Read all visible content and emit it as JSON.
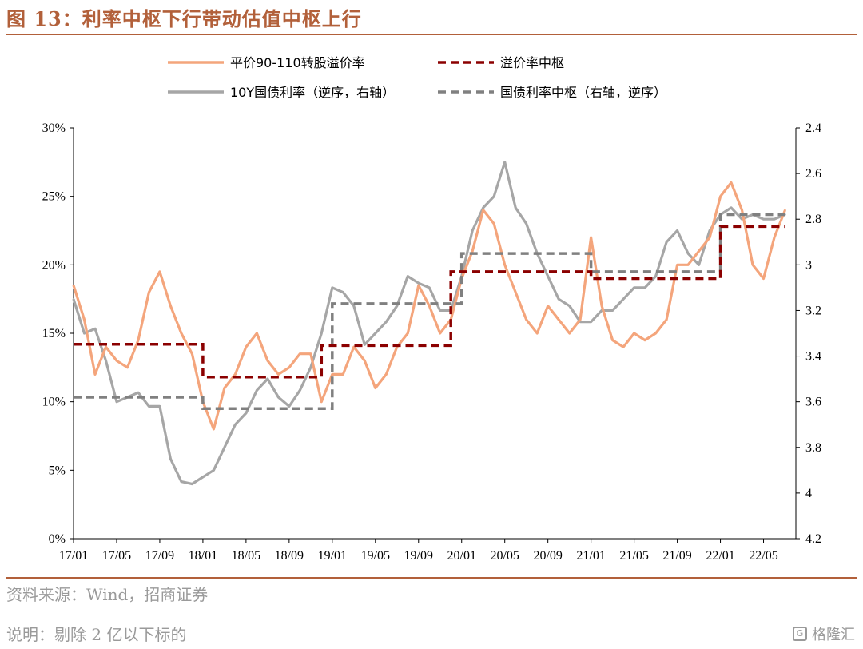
{
  "header": {
    "title": "图 13：利率中枢下行带动估值中枢上行"
  },
  "footer": {
    "source": "资料来源：Wind，招商证券",
    "note": "说明：剔除 2 亿以下标的",
    "watermark": "格隆汇"
  },
  "colors": {
    "premium": "#f4a57c",
    "premium_center": "#8b0000",
    "yield": "#a6a6a6",
    "yield_center": "#808080",
    "accent": "#b2603a"
  },
  "chart_data": {
    "type": "line",
    "x_tick_labels": [
      "17/01",
      "17/05",
      "17/09",
      "18/01",
      "18/05",
      "18/09",
      "19/01",
      "19/05",
      "19/09",
      "20/01",
      "20/05",
      "20/09",
      "21/01",
      "21/05",
      "21/09",
      "22/01",
      "22/05"
    ],
    "y_left": {
      "ticks": [
        "0%",
        "5%",
        "10%",
        "15%",
        "20%",
        "25%",
        "30%"
      ],
      "ylim": [
        0,
        30
      ],
      "unit": "%"
    },
    "y_right": {
      "ticks": [
        "2.4",
        "2.6",
        "2.8",
        "3",
        "3.2",
        "3.4",
        "3.6",
        "3.8",
        "4",
        "4.2"
      ],
      "ylim": [
        2.4,
        4.2
      ],
      "inverted": true
    },
    "series": [
      {
        "name": "平价90-110转股溢价率",
        "axis": "left",
        "style": "solid",
        "x": [
          "2017-01",
          "2017-02",
          "2017-03",
          "2017-04",
          "2017-05",
          "2017-06",
          "2017-07",
          "2017-08",
          "2017-09",
          "2017-10",
          "2017-11",
          "2017-12",
          "2018-01",
          "2018-02",
          "2018-03",
          "2018-04",
          "2018-05",
          "2018-06",
          "2018-07",
          "2018-08",
          "2018-09",
          "2018-10",
          "2018-11",
          "2018-12",
          "2019-01",
          "2019-02",
          "2019-03",
          "2019-04",
          "2019-05",
          "2019-06",
          "2019-07",
          "2019-08",
          "2019-09",
          "2019-10",
          "2019-11",
          "2019-12",
          "2020-01",
          "2020-02",
          "2020-03",
          "2020-04",
          "2020-05",
          "2020-06",
          "2020-07",
          "2020-08",
          "2020-09",
          "2020-10",
          "2020-11",
          "2020-12",
          "2021-01",
          "2021-02",
          "2021-03",
          "2021-04",
          "2021-05",
          "2021-06",
          "2021-07",
          "2021-08",
          "2021-09",
          "2021-10",
          "2021-11",
          "2021-12",
          "2022-01",
          "2022-02",
          "2022-03",
          "2022-04",
          "2022-05",
          "2022-06",
          "2022-07"
        ],
        "values": [
          18.5,
          16,
          12,
          14,
          13,
          12.5,
          14.5,
          18,
          19.5,
          17,
          15,
          13.5,
          10,
          8,
          11,
          12,
          14,
          15,
          13,
          12,
          12.5,
          13.5,
          13.5,
          10,
          12,
          12,
          14,
          13,
          11,
          12,
          14,
          15,
          18.5,
          17,
          15,
          16,
          19,
          21,
          24,
          23,
          20,
          18,
          16,
          15,
          17,
          16,
          15,
          16,
          22,
          17,
          14.5,
          14,
          15,
          14.5,
          15,
          16,
          20,
          20,
          21,
          22,
          25,
          26,
          24,
          20,
          19,
          22,
          24
        ],
        "color": "#f4a57c"
      },
      {
        "name": "溢价率中枢",
        "axis": "left",
        "style": "dashed",
        "steps": [
          {
            "x_start": "2017-01",
            "x_end": "2018-01",
            "value": 14.2
          },
          {
            "x_start": "2018-01",
            "x_end": "2018-12",
            "value": 11.8
          },
          {
            "x_start": "2018-12",
            "x_end": "2019-12",
            "value": 14.1
          },
          {
            "x_start": "2019-12",
            "x_end": "2021-01",
            "value": 19.5
          },
          {
            "x_start": "2021-01",
            "x_end": "2022-01",
            "value": 19.0
          },
          {
            "x_start": "2022-01",
            "x_end": "2022-07",
            "value": 22.8
          }
        ],
        "color": "#8b0000"
      },
      {
        "name": "10Y国债利率（逆序，右轴）",
        "axis": "right",
        "style": "solid",
        "x": [
          "2017-01",
          "2017-02",
          "2017-03",
          "2017-04",
          "2017-05",
          "2017-06",
          "2017-07",
          "2017-08",
          "2017-09",
          "2017-10",
          "2017-11",
          "2017-12",
          "2018-01",
          "2018-02",
          "2018-03",
          "2018-04",
          "2018-05",
          "2018-06",
          "2018-07",
          "2018-08",
          "2018-09",
          "2018-10",
          "2018-11",
          "2018-12",
          "2019-01",
          "2019-02",
          "2019-03",
          "2019-04",
          "2019-05",
          "2019-06",
          "2019-07",
          "2019-08",
          "2019-09",
          "2019-10",
          "2019-11",
          "2019-12",
          "2020-01",
          "2020-02",
          "2020-03",
          "2020-04",
          "2020-05",
          "2020-06",
          "2020-07",
          "2020-08",
          "2020-09",
          "2020-10",
          "2020-11",
          "2020-12",
          "2021-01",
          "2021-02",
          "2021-03",
          "2021-04",
          "2021-05",
          "2021-06",
          "2021-07",
          "2021-08",
          "2021-09",
          "2021-10",
          "2021-11",
          "2021-12",
          "2022-01",
          "2022-02",
          "2022-03",
          "2022-04",
          "2022-05",
          "2022-06",
          "2022-07"
        ],
        "values": [
          3.15,
          3.3,
          3.28,
          3.42,
          3.6,
          3.58,
          3.56,
          3.62,
          3.62,
          3.85,
          3.95,
          3.96,
          3.93,
          3.9,
          3.8,
          3.7,
          3.65,
          3.55,
          3.5,
          3.58,
          3.62,
          3.55,
          3.45,
          3.3,
          3.1,
          3.12,
          3.18,
          3.35,
          3.3,
          3.25,
          3.18,
          3.05,
          3.08,
          3.1,
          3.2,
          3.2,
          3.05,
          2.85,
          2.75,
          2.7,
          2.55,
          2.75,
          2.82,
          2.95,
          3.05,
          3.15,
          3.18,
          3.25,
          3.25,
          3.2,
          3.2,
          3.15,
          3.1,
          3.1,
          3.05,
          2.9,
          2.85,
          2.95,
          3.0,
          2.85,
          2.78,
          2.75,
          2.8,
          2.78,
          2.8,
          2.8,
          2.78
        ],
        "color": "#a6a6a6"
      },
      {
        "name": "国债利率中枢（右轴，逆序）",
        "axis": "right",
        "style": "dashed",
        "steps": [
          {
            "x_start": "2017-01",
            "x_end": "2018-01",
            "value": 3.58
          },
          {
            "x_start": "2018-01",
            "x_end": "2019-01",
            "value": 3.63
          },
          {
            "x_start": "2019-01",
            "x_end": "2020-01",
            "value": 3.17
          },
          {
            "x_start": "2020-01",
            "x_end": "2021-01",
            "value": 2.95
          },
          {
            "x_start": "2021-01",
            "x_end": "2022-01",
            "value": 3.03
          },
          {
            "x_start": "2022-01",
            "x_end": "2022-07",
            "value": 2.78
          }
        ],
        "color": "#808080"
      }
    ],
    "legend": {
      "placement": "top",
      "columns": 2
    },
    "grid": false
  }
}
